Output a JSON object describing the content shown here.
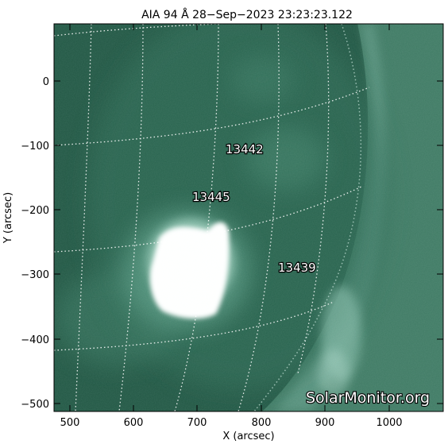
{
  "title": "AIA 94 Å 28−Sep−2023 23:23:23.122",
  "x_axis": {
    "label": "X (arcsec)",
    "ticks": [
      "500",
      "600",
      "700",
      "800",
      "900",
      "1000"
    ]
  },
  "y_axis": {
    "label": "Y (arcsec)",
    "ticks": [
      "0",
      "−100",
      "−200",
      "−300",
      "−400",
      "−500"
    ]
  },
  "active_regions": [
    {
      "number": "13442"
    },
    {
      "number": "13445"
    },
    {
      "number": "13439"
    }
  ],
  "watermark": "SolarMonitor.org",
  "colors": {
    "disk": "#2a6650",
    "disk_dark": "#1f5442",
    "corona": "#4d8a74",
    "flare": "#ffffff",
    "grid": "#ffffff"
  }
}
